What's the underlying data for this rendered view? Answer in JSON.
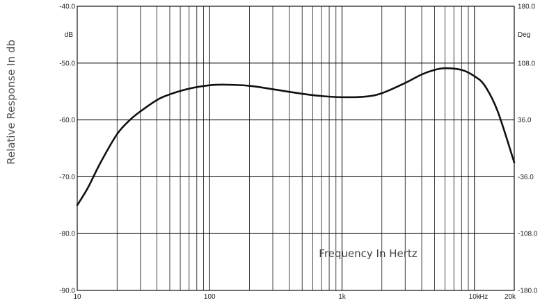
{
  "chart_data": {
    "type": "line",
    "title": "",
    "xlabel": "Frequency In Hertz",
    "ylabel": "Relative Response In db",
    "x_scale": "log",
    "xlim": [
      10,
      20000
    ],
    "ylim": [
      -90,
      -40
    ],
    "y_unit_left": "dB",
    "y_unit_right": "Deg",
    "x_unit": "Hz",
    "grid": true,
    "x_tick_labels": [
      {
        "value": 10,
        "label": "10"
      },
      {
        "value": 100,
        "label": "100"
      },
      {
        "value": 1000,
        "label": "1k"
      },
      {
        "value": 10000,
        "label": "10k"
      },
      {
        "value": 20000,
        "label": "20k"
      }
    ],
    "y_tick_labels_left": [
      "-40.0",
      "-50.0",
      "-60.0",
      "-70.0",
      "-80.0",
      "-90.0"
    ],
    "y_tick_values_left": [
      -40,
      -50,
      -60,
      -70,
      -80,
      -90
    ],
    "y_tick_labels_right": [
      "180.0",
      "108.0",
      "36.0",
      "-36.0",
      "-108.0",
      "-180.0"
    ],
    "series": [
      {
        "x": [
          10,
          12,
          15,
          20,
          25,
          30,
          40,
          50,
          70,
          100,
          130,
          200,
          300,
          500,
          700,
          1000,
          1500,
          2000,
          3000,
          4000,
          5000,
          6000,
          8000,
          10000,
          12000,
          15000,
          20000
        ],
        "y": [
          -75.0,
          -72.0,
          -67.5,
          -62.5,
          -60.0,
          -58.5,
          -56.5,
          -55.5,
          -54.5,
          -53.9,
          -53.8,
          -54.0,
          -54.6,
          -55.4,
          -55.8,
          -56.0,
          -55.9,
          -55.3,
          -53.5,
          -52.0,
          -51.2,
          -50.9,
          -51.2,
          -52.3,
          -54.0,
          -58.5,
          -67.5
        ]
      }
    ]
  }
}
